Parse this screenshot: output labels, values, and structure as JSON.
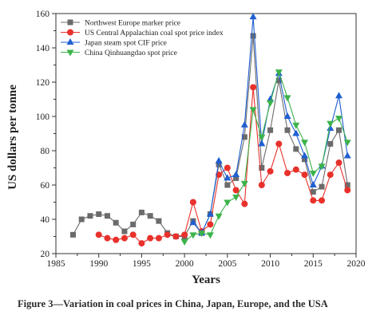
{
  "caption": "Figure 3—Variation in coal prices in China, Japan, Europe, and the USA",
  "chart_data": {
    "type": "line",
    "xlabel": "Years",
    "ylabel": "US dollars per tonne",
    "xlim": [
      1985,
      2020
    ],
    "ylim": [
      20,
      160
    ],
    "xticks": [
      1985,
      1990,
      1995,
      2000,
      2005,
      2010,
      2015,
      2020
    ],
    "yticks": [
      20,
      40,
      60,
      80,
      100,
      120,
      140,
      160
    ],
    "legend_position": "top-left",
    "series": [
      {
        "name": "Northwest Europe marker price",
        "color": "#6b6b6b",
        "marker": "square",
        "x": [
          1987,
          1988,
          1989,
          1990,
          1991,
          1992,
          1993,
          1994,
          1995,
          1996,
          1997,
          1998,
          1999,
          2000,
          2001,
          2002,
          2003,
          2004,
          2005,
          2006,
          2007,
          2008,
          2009,
          2010,
          2011,
          2012,
          2013,
          2014,
          2015,
          2016,
          2017,
          2018,
          2019
        ],
        "y": [
          31,
          40,
          42,
          43,
          42,
          38,
          33,
          37,
          44,
          42,
          39,
          32,
          30,
          30,
          39,
          32,
          43,
          72,
          60,
          64,
          88,
          147,
          70,
          92,
          121,
          92,
          81,
          75,
          56,
          59,
          84,
          92,
          60
        ]
      },
      {
        "name": "US Central Appalachian coal spot price index",
        "color": "#e8312b",
        "marker": "circle",
        "x": [
          1990,
          1991,
          1992,
          1993,
          1994,
          1995,
          1996,
          1997,
          1998,
          1999,
          2000,
          2001,
          2002,
          2003,
          2004,
          2005,
          2006,
          2007,
          2008,
          2009,
          2010,
          2011,
          2012,
          2013,
          2014,
          2015,
          2016,
          2017,
          2018,
          2019
        ],
        "y": [
          31,
          29,
          28,
          29,
          31,
          26,
          29,
          29,
          31,
          30,
          31,
          50,
          33,
          37,
          66,
          70,
          57,
          49,
          117,
          60,
          68,
          84,
          67,
          69,
          66,
          51,
          51,
          66,
          73,
          57
        ]
      },
      {
        "name": "Japan steam spot CIF price",
        "color": "#1f5fd1",
        "marker": "triangle-up",
        "x": [
          2001,
          2002,
          2003,
          2004,
          2005,
          2006,
          2007,
          2008,
          2009,
          2010,
          2011,
          2012,
          2013,
          2014,
          2015,
          2016,
          2017,
          2018,
          2019
        ],
        "y": [
          38,
          32,
          43,
          74,
          64,
          66,
          95,
          158,
          84,
          110,
          125,
          100,
          90,
          77,
          60,
          71,
          93,
          112,
          77
        ]
      },
      {
        "name": "China Qinhuangdao spot price",
        "color": "#3cb34a",
        "marker": "triangle-down",
        "x": [
          2000,
          2001,
          2002,
          2003,
          2004,
          2005,
          2006,
          2007,
          2008,
          2009,
          2010,
          2011,
          2012,
          2013,
          2014,
          2015,
          2016,
          2017,
          2018,
          2019
        ],
        "y": [
          27,
          31,
          32,
          31,
          42,
          50,
          53,
          61,
          104,
          88,
          108,
          126,
          111,
          95,
          85,
          67,
          71,
          96,
          99,
          85
        ]
      }
    ]
  }
}
